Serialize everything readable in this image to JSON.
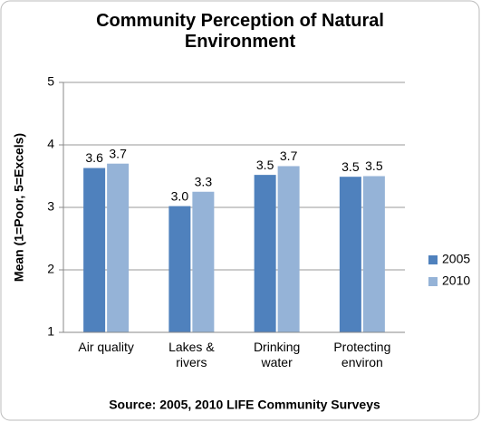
{
  "chart_data": {
    "type": "bar",
    "title": "Community Perception of Natural Environment",
    "ylabel": "Mean (1=Poor, 5=Excels)",
    "source": "Source: 2005, 2010 LIFE Community Surveys",
    "categories": [
      "Air quality",
      "Lakes & rivers",
      "Drinking water",
      "Protecting environ"
    ],
    "series": [
      {
        "name": "2005",
        "color": "#4f81bd",
        "values": [
          3.63,
          3.02,
          3.52,
          3.49
        ],
        "value_labels": [
          "3.6",
          "3.0",
          "3.5",
          "3.5"
        ]
      },
      {
        "name": "2010",
        "color": "#95b3d7",
        "values": [
          3.7,
          3.25,
          3.66,
          3.5
        ],
        "value_labels": [
          "3.7",
          "3.3",
          "3.7",
          "3.5"
        ]
      }
    ],
    "ylim": [
      1,
      5
    ],
    "yticks": [
      1,
      2,
      3,
      4,
      5
    ],
    "grid": true,
    "legend": "right"
  }
}
